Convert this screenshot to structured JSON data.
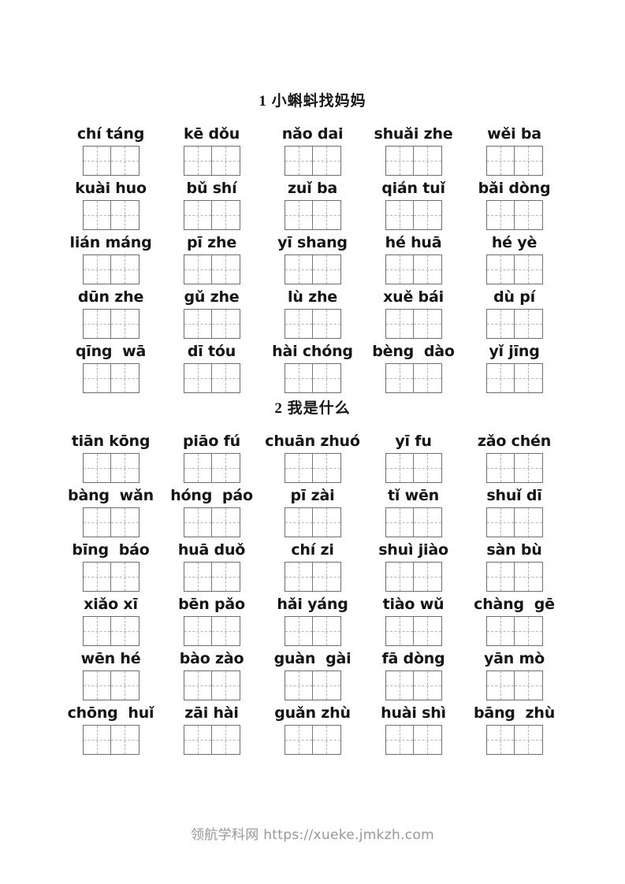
{
  "page": {
    "footer": "领航学科网 https://xueke.jmkzh.com"
  },
  "sections": [
    {
      "title": "1 小蝌蚪找妈妈",
      "rows": [
        [
          "chí táng",
          "kē dǒu",
          "nǎo dai",
          "shuǎi zhe",
          "wěi ba"
        ],
        [
          "kuài huo",
          "bǔ shí",
          "zuǐ ba",
          "qián tuǐ",
          "bǎi dòng"
        ],
        [
          "lián máng",
          "pī zhe",
          "yī shang",
          "hé huā",
          "hé yè"
        ],
        [
          "dūn zhe",
          "gǔ zhe",
          "lù zhe",
          "xuě bái",
          "dù pí"
        ],
        [
          "qīng  wā",
          "dī tóu",
          "hài chóng",
          "bèng  dào",
          "yǐ jīng"
        ]
      ]
    },
    {
      "title": "2 我是什么",
      "rows": [
        [
          "tiān kōng",
          "piāo fú",
          "chuān zhuó",
          "yī fu",
          "zǎo chén"
        ],
        [
          "bàng  wǎn",
          "hóng  páo",
          "pī zài",
          "tǐ wēn",
          "shuǐ dī"
        ],
        [
          "bīng  báo",
          "huā duǒ",
          "chí zi",
          "shuì jiào",
          "sàn bù"
        ],
        [
          "xiǎo xī",
          "bēn pǎo",
          "hǎi yáng",
          "tiào wǔ",
          "chàng  gē"
        ],
        [
          "wēn hé",
          "bào zào",
          "guàn  gài",
          "fā dòng",
          "yān mò"
        ],
        [
          "chōng  huǐ",
          "zāi hài",
          "guǎn zhù",
          "huài shì",
          "bāng  zhù"
        ]
      ]
    }
  ]
}
